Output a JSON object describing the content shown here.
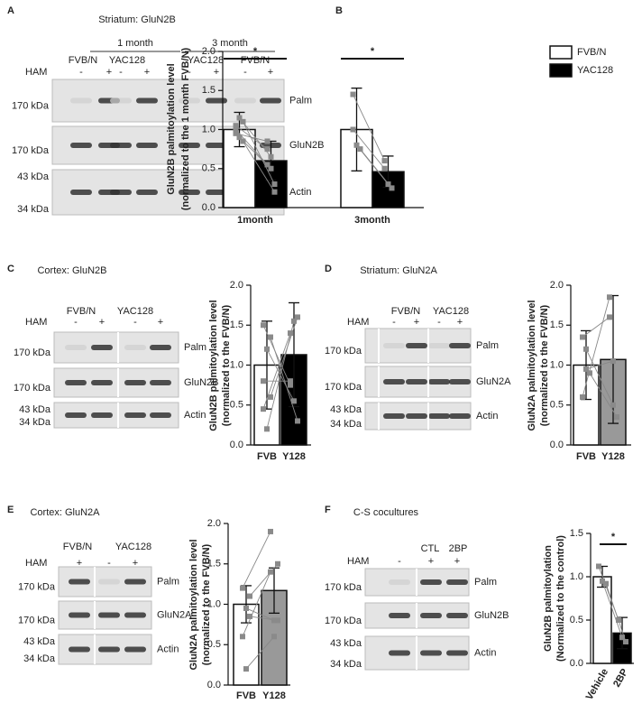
{
  "figure": {
    "letters": [
      "A",
      "B",
      "C",
      "D",
      "E",
      "F"
    ],
    "blots": [
      {
        "title": "Striatum: GluN2B",
        "groups": [
          "1 month",
          "3 month"
        ],
        "conditions": [
          "FVB/N",
          "YAC128",
          "YAC128",
          "FVB/N"
        ],
        "ham": "HAM",
        "signs": [
          "-",
          "+",
          "-",
          "+",
          "-",
          "+",
          "-",
          "+"
        ],
        "rows": [
          {
            "label": "Palm",
            "kda": [
              "170 kDa"
            ]
          },
          {
            "label": "GluN2B",
            "kda": [
              "170 kDa"
            ]
          },
          {
            "label": "Actin",
            "kda": [
              "43 kDa",
              "34 kDa"
            ]
          }
        ]
      },
      {
        "title": "Cortex: GluN2B",
        "conditions": [
          "FVB/N",
          "YAC128"
        ],
        "ham": "HAM",
        "signs": [
          "-",
          "+",
          "-",
          "+"
        ],
        "rows": [
          {
            "label": "Palm",
            "kda": [
              "170 kDa"
            ]
          },
          {
            "label": "GluN2B",
            "kda": [
              "170 kDa"
            ]
          },
          {
            "label": "Actin",
            "kda": [
              "43 kDa",
              "34 kDa"
            ]
          }
        ]
      },
      {
        "title": "Striatum: GluN2A",
        "conditions": [
          "FVB/N",
          "YAC128"
        ],
        "ham": "HAM",
        "signs": [
          "-",
          "+",
          "-",
          "+"
        ],
        "rows": [
          {
            "label": "Palm",
            "kda": [
              "170 kDa"
            ]
          },
          {
            "label": "GluN2A",
            "kda": [
              "170 kDa"
            ]
          },
          {
            "label": "Actin",
            "kda": [
              "43 kDa",
              "34 kDa"
            ]
          }
        ]
      },
      {
        "title": "Cortex: GluN2A",
        "conditions": [
          "FVB/N",
          "YAC128"
        ],
        "ham": "HAM",
        "signs": [
          "+",
          "-",
          "+"
        ],
        "rows": [
          {
            "label": "Palm",
            "kda": [
              "170 kDa"
            ]
          },
          {
            "label": "GluN2A",
            "kda": [
              "170 kDa"
            ]
          },
          {
            "label": "Actin",
            "kda": [
              "43 kDa",
              "34 kDa"
            ]
          }
        ]
      },
      {
        "title": "C-S cocultures",
        "conditions": [
          "CTL",
          "2BP"
        ],
        "ham": "HAM",
        "signs": [
          "-",
          "+",
          "+"
        ],
        "rows": [
          {
            "label": "Palm",
            "kda": [
              "170 kDa"
            ]
          },
          {
            "label": "GluN2B",
            "kda": [
              "170 kDa"
            ]
          },
          {
            "label": "Actin",
            "kda": [
              "43 kDa",
              "34 kDa"
            ]
          }
        ]
      }
    ]
  },
  "chart_data": [
    {
      "type": "grouped_bar",
      "y_label": [
        "GluN2B palmitoylation level",
        "(normalized to the 1 month FVB/N)"
      ],
      "categories": [
        "1month",
        "3month"
      ],
      "series": [
        {
          "name": "FVB/N",
          "color": "#ffffff",
          "values": [
            1.0,
            1.0
          ],
          "errors": [
            0.22,
            0.53
          ],
          "points": [
            [
              1.05,
              0.9,
              1.1,
              0.95,
              1.15,
              0.85,
              1.0
            ],
            [
              1.45,
              0.8,
              0.75,
              1.0
            ]
          ]
        },
        {
          "name": "YAC128",
          "color": "#000000",
          "values": [
            0.6,
            0.46
          ],
          "errors": [
            0.25,
            0.2
          ],
          "points": [
            [
              0.75,
              0.5,
              0.3,
              0.85,
              0.65,
              0.2,
              0.55
            ],
            [
              0.6,
              0.3,
              0.25,
              0.5
            ]
          ]
        }
      ],
      "ylim": [
        0,
        2
      ],
      "yticks": [
        {
          "value": 0,
          "label": "0.0"
        },
        {
          "value": 0.5,
          "label": "0.5"
        },
        {
          "value": 1,
          "label": "1.0"
        },
        {
          "value": 1.5,
          "label": "1.5"
        },
        {
          "value": 2,
          "label": "2.0"
        }
      ],
      "annotations": [
        "*",
        "*"
      ]
    },
    {
      "type": "bar",
      "y_label": [
        "GluN2B palmitoylation level",
        "(normalized to the FVB/N)"
      ],
      "categories": [
        "FVB",
        "Y128"
      ],
      "values": [
        1.0,
        1.13
      ],
      "errors": [
        0.55,
        0.65
      ],
      "colors": [
        "#ffffff",
        "#000000"
      ],
      "points": [
        [
          0.45,
          0.2,
          0.6,
          0.8,
          1.2,
          1.35,
          1.5
        ],
        [
          1.4,
          1.55,
          1.6,
          0.8,
          0.55,
          0.3,
          0.75
        ]
      ],
      "ylim": [
        0,
        2
      ],
      "yticks": [
        {
          "value": 0,
          "label": "0.0"
        },
        {
          "value": 0.5,
          "label": "0.5"
        },
        {
          "value": 1,
          "label": "1.0"
        },
        {
          "value": 1.5,
          "label": "1.5"
        },
        {
          "value": 2,
          "label": "2.0"
        }
      ]
    },
    {
      "type": "bar",
      "y_label": [
        "GluN2A palmitoylation level",
        "(normalized to the FVB/N)"
      ],
      "categories": [
        "FVB",
        "Y128"
      ],
      "values": [
        1.0,
        1.07
      ],
      "errors": [
        0.43,
        0.8
      ],
      "colors": [
        "#ffffff",
        "#999999"
      ],
      "points": [
        [
          0.6,
          1.2,
          0.9,
          1.35,
          0.95
        ],
        [
          1.85,
          0.5,
          0.35,
          1.6,
          1.05
        ]
      ],
      "ylim": [
        0,
        2
      ],
      "yticks": [
        {
          "value": 0,
          "label": "0.0"
        },
        {
          "value": 0.5,
          "label": "0.5"
        },
        {
          "value": 1,
          "label": "1.0"
        },
        {
          "value": 1.5,
          "label": "1.5"
        },
        {
          "value": 2,
          "label": "2.0"
        }
      ]
    },
    {
      "type": "bar",
      "y_label": [
        "GluN2A palmitoylation level",
        "(normalized to the FVB/N)"
      ],
      "categories": [
        "FVB",
        "Y128"
      ],
      "values": [
        1.0,
        1.17
      ],
      "errors": [
        0.23,
        0.28
      ],
      "colors": [
        "#ffffff",
        "#999999"
      ],
      "points": [
        [
          1.2,
          0.95,
          1.1,
          0.6,
          0.2,
          0.85
        ],
        [
          1.9,
          0.8,
          1.5,
          1.4,
          0.6,
          0.8
        ]
      ],
      "ylim": [
        0,
        2
      ],
      "yticks": [
        {
          "value": 0,
          "label": "0.0"
        },
        {
          "value": 0.5,
          "label": "0.5"
        },
        {
          "value": 1,
          "label": "1.0"
        },
        {
          "value": 1.5,
          "label": "1.5"
        },
        {
          "value": 2,
          "label": "2.0"
        }
      ]
    },
    {
      "type": "bar",
      "y_label": [
        "GluN2B palmitoylation",
        "(Normalized to the control)"
      ],
      "categories": [
        "Vehicle",
        "2BP"
      ],
      "values": [
        1.0,
        0.35
      ],
      "errors": [
        0.12,
        0.18
      ],
      "colors": [
        "#ffffff",
        "#000000"
      ],
      "points": [
        [
          1.12,
          0.95,
          0.92
        ],
        [
          0.5,
          0.3,
          0.25
        ]
      ],
      "ylim": [
        0,
        1.5
      ],
      "yticks": [
        {
          "value": 0,
          "label": "0.0"
        },
        {
          "value": 0.5,
          "label": "0.5"
        },
        {
          "value": 1,
          "label": "1.0"
        },
        {
          "value": 1.5,
          "label": "1.5"
        }
      ],
      "annotations": [
        "*"
      ]
    }
  ]
}
